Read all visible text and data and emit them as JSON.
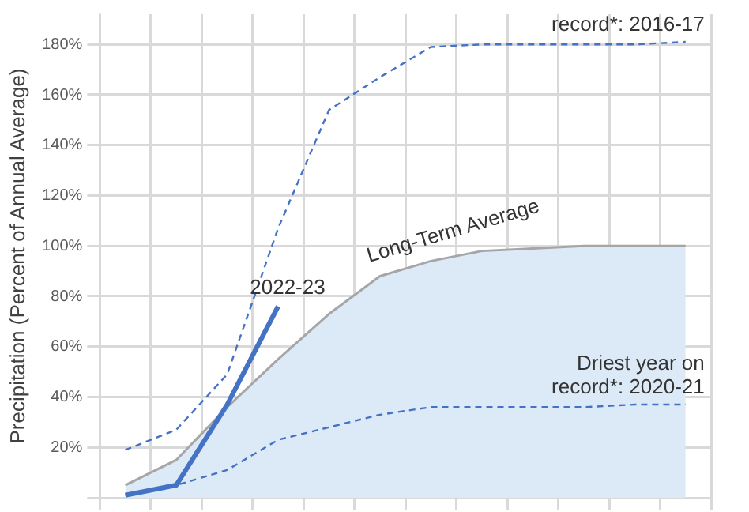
{
  "chart_data": {
    "type": "line",
    "ylabel": "Precipitation (Percent of Annual Average)",
    "categories": [
      null,
      null,
      null,
      null,
      null,
      null,
      null,
      null,
      null,
      null,
      null,
      null
    ],
    "series": [
      {
        "name": "Long-Term Average",
        "type": "area",
        "color": "#dce9f6",
        "values": [
          5,
          15,
          36,
          55,
          73,
          88,
          94,
          98,
          99,
          100,
          100,
          100
        ]
      },
      {
        "name": "record*: 2016-17",
        "type": "line",
        "line_style": "dashed",
        "color": "#4472c4",
        "values": [
          19,
          27,
          49,
          107,
          154,
          167,
          179,
          180,
          180,
          180,
          180,
          181
        ]
      },
      {
        "name": "Driest year on record*: 2020-21",
        "type": "line",
        "line_style": "dashed",
        "color": "#4472c4",
        "values": [
          1,
          5,
          11,
          23,
          28,
          33,
          36,
          36,
          36,
          36,
          37,
          37
        ]
      },
      {
        "name": "2022-23",
        "type": "line",
        "line_style": "solid",
        "color": "#4472c4",
        "values": [
          1,
          5,
          37,
          76,
          null,
          null,
          null,
          null,
          null,
          null,
          null,
          null
        ]
      }
    ],
    "ylim": [
      0,
      192
    ],
    "yticks": [
      {
        "value": 0,
        "label": null
      },
      {
        "value": 20,
        "label": "20%"
      },
      {
        "value": 40,
        "label": "40%"
      },
      {
        "value": 60,
        "label": "60%"
      },
      {
        "value": 80,
        "label": "80%"
      },
      {
        "value": 100,
        "label": "100%"
      },
      {
        "value": 120,
        "label": "120%"
      },
      {
        "value": 140,
        "label": "140%"
      },
      {
        "value": 160,
        "label": "160%"
      },
      {
        "value": 180,
        "label": "180%"
      }
    ],
    "tick_labels": "y",
    "grid": true,
    "legend": false
  }
}
